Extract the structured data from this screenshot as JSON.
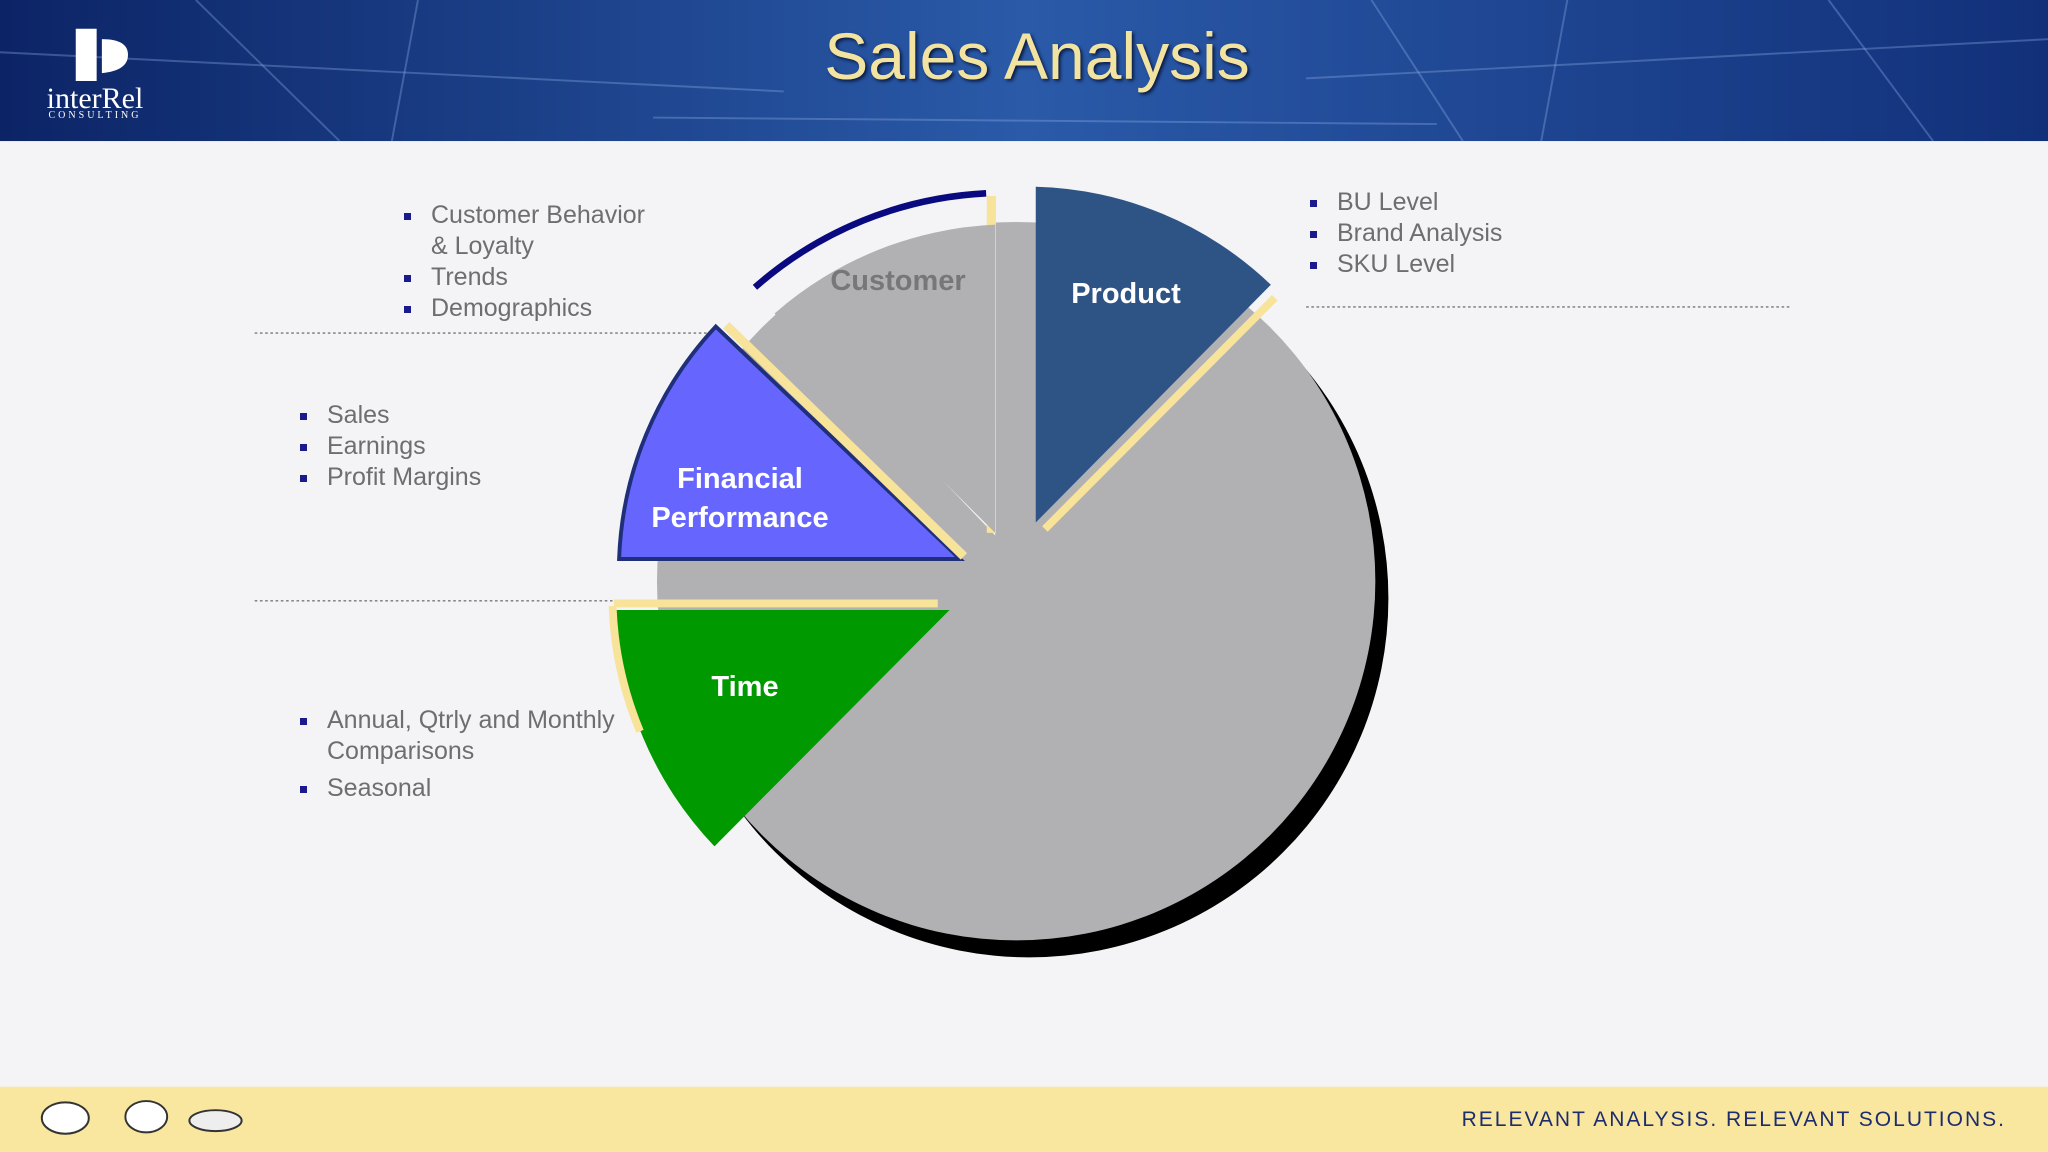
{
  "header": {
    "title": "Sales Analysis",
    "logo": {
      "name": "interRel",
      "subtitle": "CONSULTING"
    }
  },
  "segments": [
    {
      "label": "Customer",
      "bullets": [
        "Customer Behavior & Loyalty",
        "Trends",
        "Demographics"
      ]
    },
    {
      "label": "Product",
      "bullets": [
        "BU Level",
        "Brand Analysis",
        "SKU Level"
      ]
    },
    {
      "label": "Financial Performance",
      "bullets": [
        "Sales",
        "Earnings",
        "Profit Margins"
      ]
    },
    {
      "label": "Time",
      "bullets": [
        "Annual, Qtrly and Monthly Comparisons",
        "Seasonal"
      ]
    }
  ],
  "footer": {
    "tagline": "RELEVANT ANALYSIS. RELEVANT SOLUTIONS."
  }
}
